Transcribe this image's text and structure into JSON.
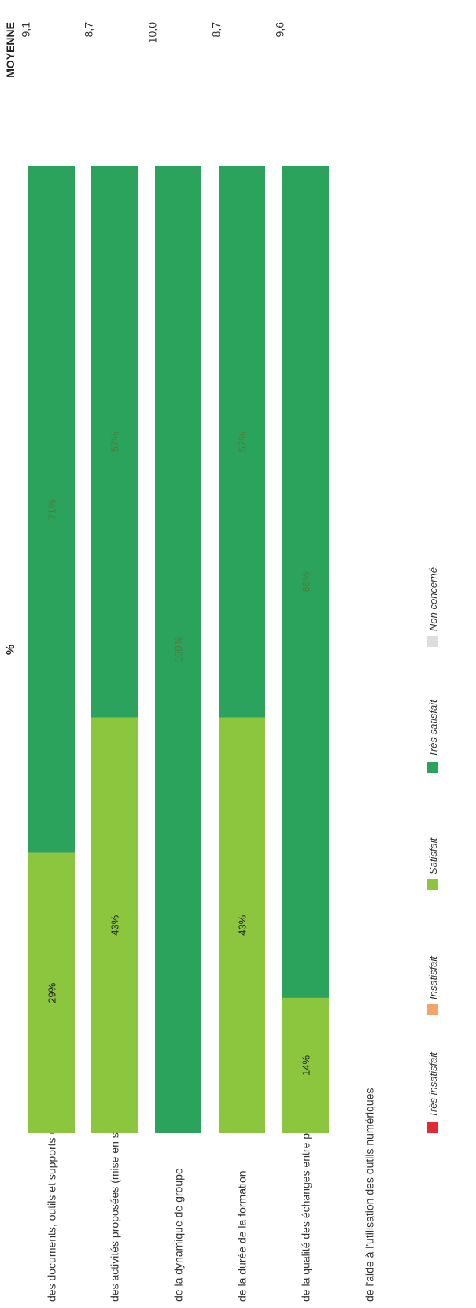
{
  "chart_data": {
    "type": "bar",
    "orientation": "stacked-horizontal",
    "x_axis_label": "%",
    "mean_header": "MOYENNE",
    "categories": [
      "des documents, outils et supports utilisés",
      "des activités proposées (mise en situation, etc.)",
      "de la dynamique de groupe",
      "de la durée de la formation",
      "de la qualité des échanges entre participants",
      "de l'aide à l'utilisation des outils numériques"
    ],
    "series": [
      {
        "name": "Très insatisfait",
        "color": "#e02a35",
        "values": [
          0,
          0,
          0,
          0,
          0,
          0
        ]
      },
      {
        "name": "Insatisfait",
        "color": "#f2a46a",
        "values": [
          0,
          0,
          0,
          0,
          0,
          0
        ]
      },
      {
        "name": "Satisfait",
        "color": "#8cc63e",
        "values": [
          29,
          43,
          0,
          43,
          14,
          0
        ]
      },
      {
        "name": "Très satisfait",
        "color": "#2ca35c",
        "values": [
          71,
          57,
          100,
          57,
          86,
          0
        ]
      },
      {
        "name": "Non concerné",
        "color": "#dddddd",
        "values": [
          0,
          0,
          0,
          0,
          0,
          0
        ]
      }
    ],
    "data_labels": [
      [
        "29%",
        "71%"
      ],
      [
        "43%",
        "57%"
      ],
      [
        "100%"
      ],
      [
        "43%",
        "57%"
      ],
      [
        "14%",
        "86%"
      ],
      []
    ],
    "means": [
      "9,1",
      "8,7",
      "10,0",
      "8,7",
      "9,6",
      ""
    ],
    "xlim": [
      0,
      100
    ],
    "legend_position": "bottom",
    "rotation": "page rotated 90° counter-clockwise"
  }
}
